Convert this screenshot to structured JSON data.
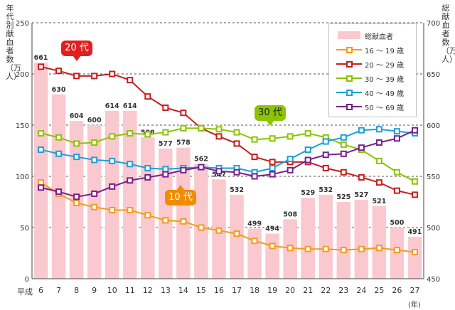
{
  "chart_data": {
    "type": "bar+line",
    "left_axis_label": "年代別献血者数（万人）",
    "right_axis_label": "総献血者数（万人）",
    "left_ylim": [
      0,
      250
    ],
    "left_ticks": [
      0,
      50,
      100,
      150,
      200,
      250
    ],
    "right_ylim": [
      450,
      700
    ],
    "right_ticks": [
      450,
      500,
      550,
      600,
      650,
      700
    ],
    "era_label": "平成",
    "x_unit": "(年)",
    "categories": [
      "6",
      "7",
      "8",
      "9",
      "10",
      "11",
      "12",
      "13",
      "14",
      "15",
      "16",
      "17",
      "18",
      "19",
      "20",
      "21",
      "22",
      "23",
      "24",
      "25",
      "26",
      "27"
    ],
    "bars": {
      "name": "総献血者",
      "axis": "right",
      "values": [
        661,
        630,
        604,
        600,
        614,
        614,
        588,
        577,
        578,
        562,
        547,
        532,
        499,
        494,
        508,
        529,
        532,
        525,
        527,
        521,
        500,
        491
      ],
      "color": "#f9c9cf"
    },
    "series": [
      {
        "name": "16 ～ 19 歳",
        "color": "#f39c1a",
        "values": [
          94,
          83,
          74,
          70,
          67,
          67,
          62,
          57,
          56,
          50,
          47,
          44,
          37,
          32,
          30,
          29,
          29,
          28,
          29,
          30,
          28,
          26
        ]
      },
      {
        "name": "20 ～ 29 歳",
        "color": "#c81e1e",
        "values": [
          207,
          203,
          198,
          198,
          200,
          194,
          178,
          167,
          162,
          147,
          139,
          132,
          119,
          114,
          114,
          114,
          108,
          104,
          99,
          94,
          86,
          82
        ]
      },
      {
        "name": "30 ～ 39 歳",
        "color": "#8bc400",
        "values": [
          142,
          138,
          132,
          133,
          139,
          142,
          141,
          143,
          147,
          147,
          146,
          143,
          136,
          137,
          139,
          142,
          138,
          131,
          126,
          115,
          104,
          95
        ]
      },
      {
        "name": "40 ～ 49 歳",
        "color": "#1ba1d8",
        "values": [
          126,
          122,
          119,
          116,
          115,
          112,
          108,
          107,
          108,
          109,
          108,
          108,
          104,
          108,
          117,
          126,
          134,
          138,
          145,
          146,
          144,
          142
        ]
      },
      {
        "name": "50 ～ 69 歳",
        "color": "#7a1f8c",
        "values": [
          89,
          85,
          80,
          83,
          90,
          96,
          99,
          102,
          106,
          109,
          105,
          104,
          100,
          102,
          106,
          116,
          121,
          122,
          128,
          133,
          137,
          145
        ]
      }
    ]
  },
  "callouts": {
    "c20": "20 代",
    "c10": "10 代",
    "c30": "30 代"
  }
}
